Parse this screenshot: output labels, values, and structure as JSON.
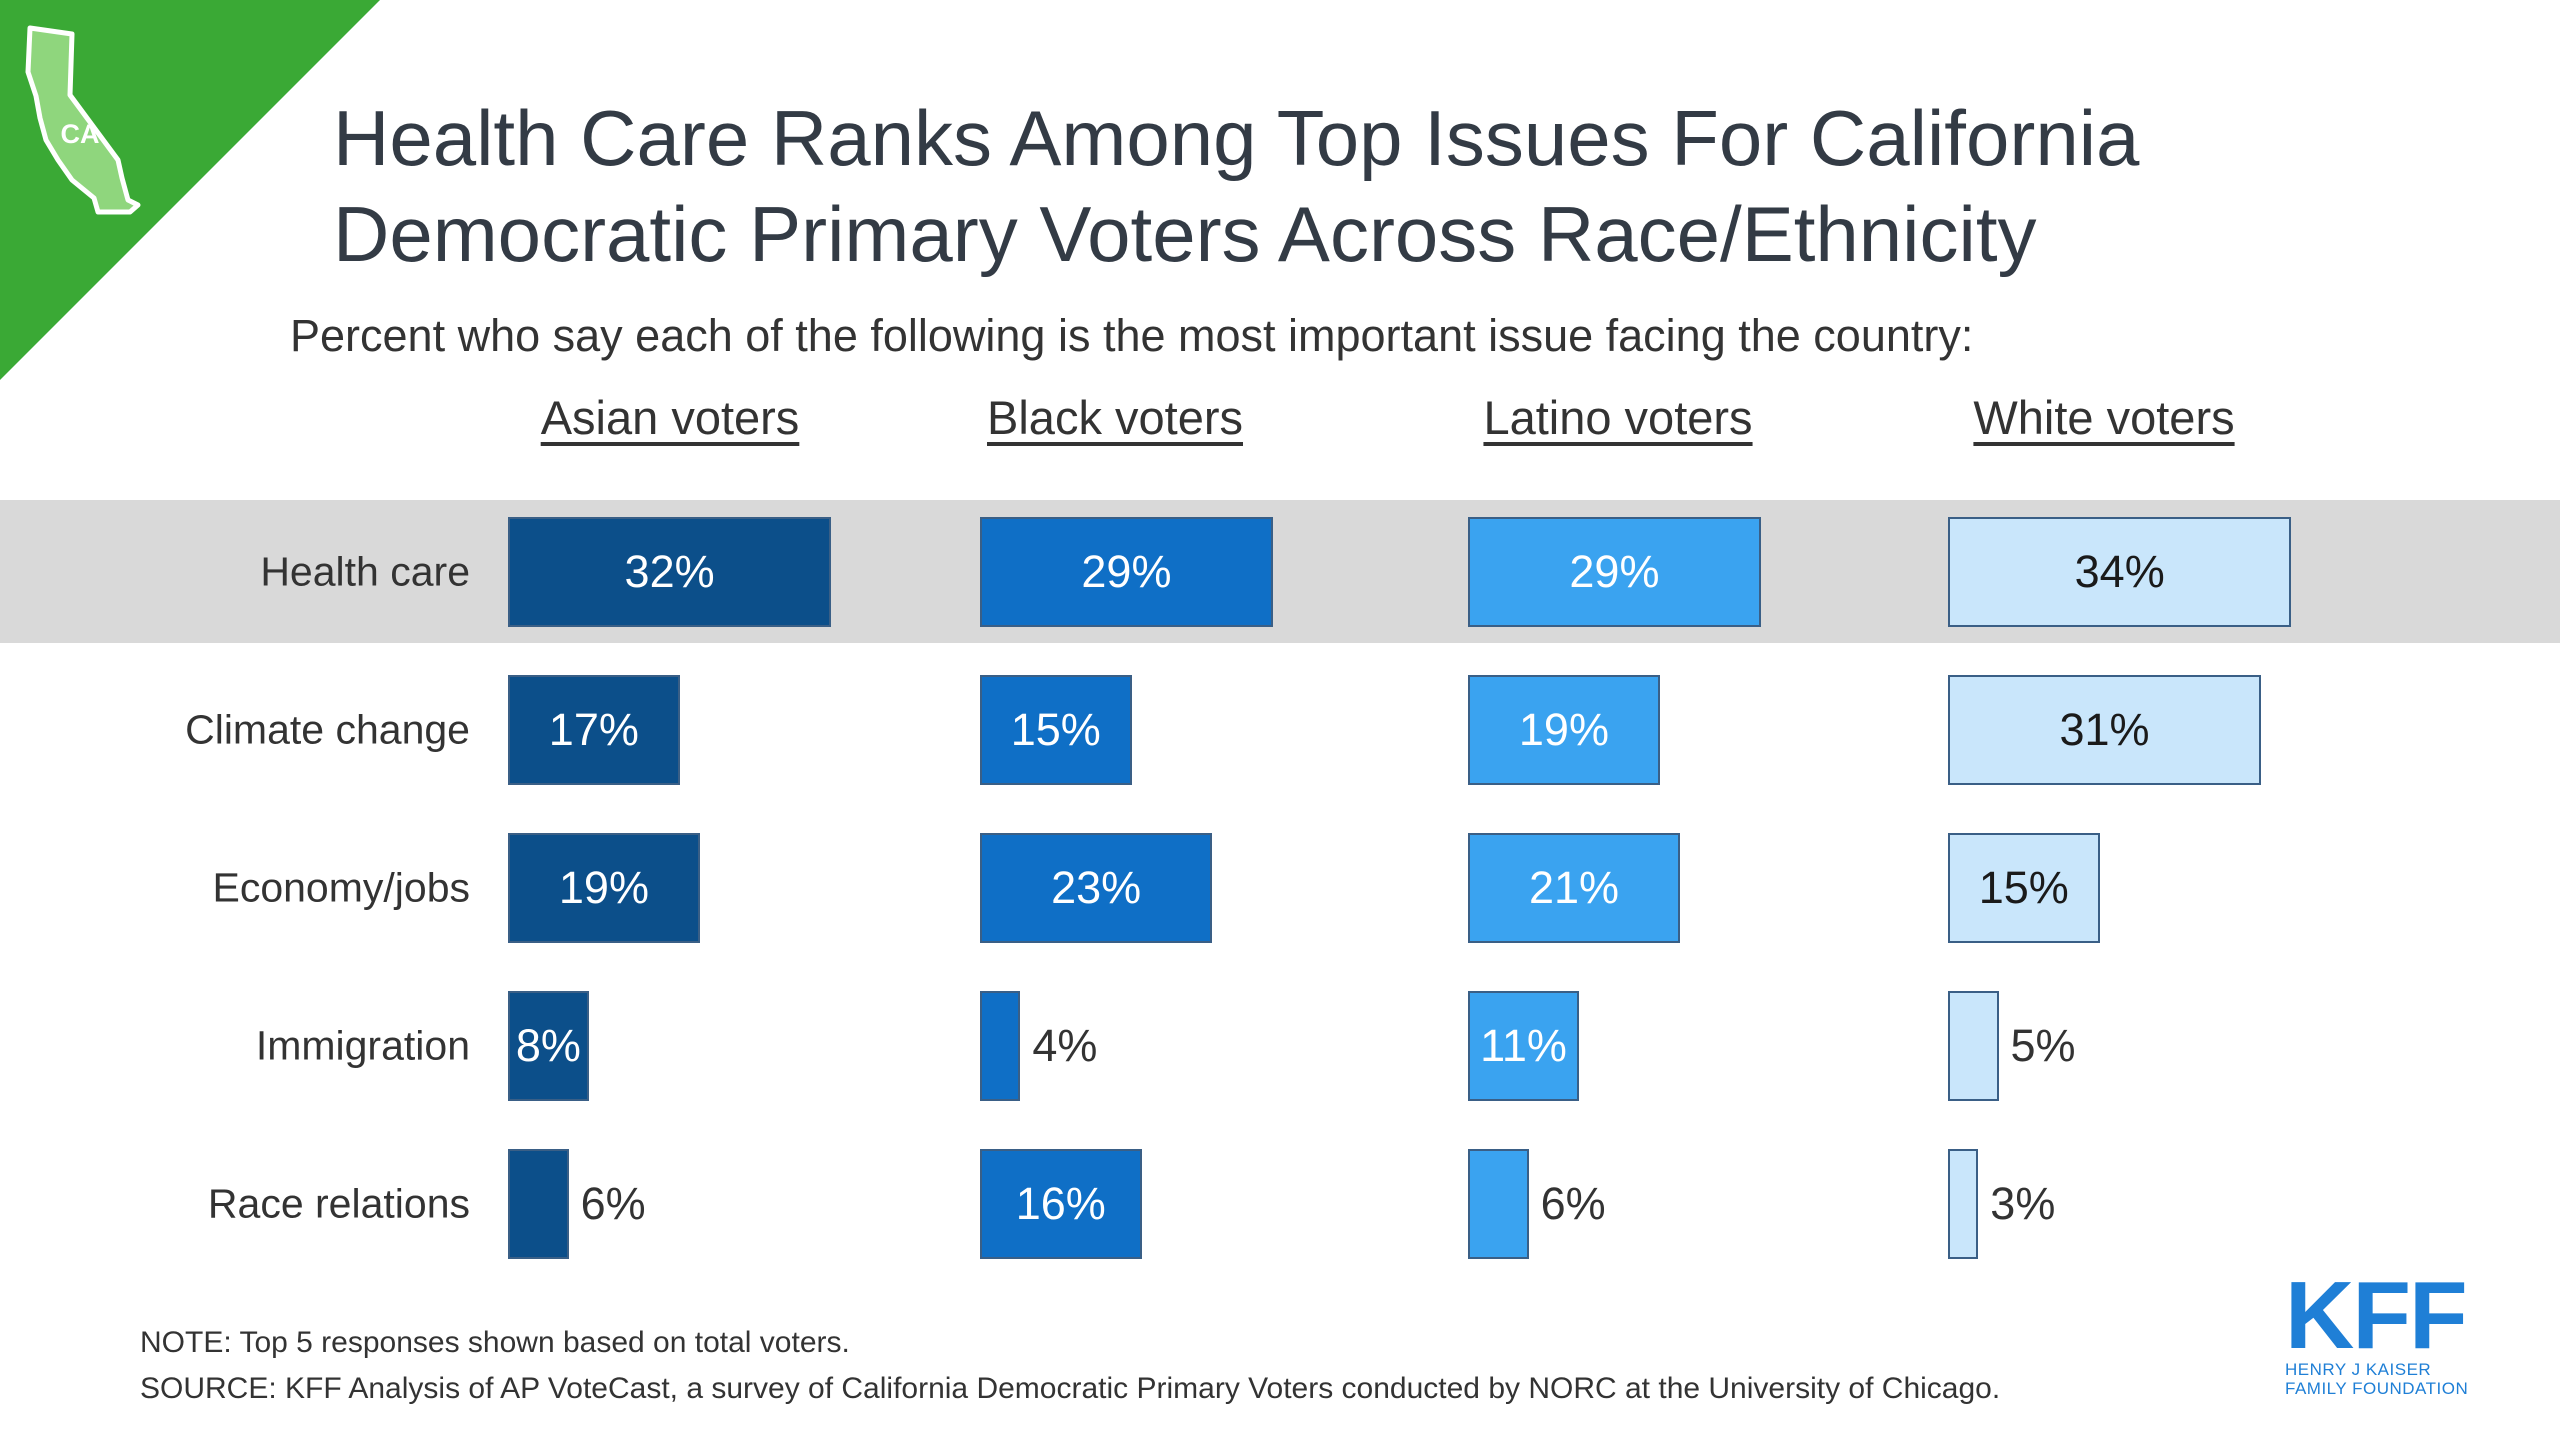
{
  "title_line1": "Health Care Ranks Among Top Issues For California",
  "title_line2": "Democratic Primary Voters Across Race/Ethnicity",
  "subtitle": "Percent who say each of the following is the most important issue facing the country:",
  "badge": "CA",
  "colors": {
    "corner": "#3aa935",
    "asian": "#0c4f8a",
    "black": "#0f6fc6",
    "latino": "#3aa3f0",
    "white": "#c9e6fb",
    "highlight": "#d9d9d9"
  },
  "chart_data": {
    "type": "bar",
    "orientation": "horizontal",
    "categories": [
      "Health care",
      "Climate change",
      "Economy/jobs",
      "Immigration",
      "Race relations"
    ],
    "highlighted_category": "Health care",
    "series": [
      {
        "name": "Asian voters",
        "values": [
          32,
          17,
          19,
          8,
          6
        ],
        "labels": [
          "32%",
          "17%",
          "19%",
          "8%",
          "6%"
        ]
      },
      {
        "name": "Black voters",
        "values": [
          29,
          15,
          23,
          4,
          16
        ],
        "labels": [
          "29%",
          "15%",
          "23%",
          "4%",
          "16%"
        ]
      },
      {
        "name": "Latino voters",
        "values": [
          29,
          19,
          21,
          11,
          6
        ],
        "labels": [
          "29%",
          "19%",
          "21%",
          "11%",
          "6%"
        ]
      },
      {
        "name": "White voters",
        "values": [
          34,
          31,
          15,
          5,
          3
        ],
        "labels": [
          "34%",
          "31%",
          "15%",
          "5%",
          "3%"
        ]
      }
    ],
    "unit": "%"
  },
  "note": "NOTE: Top 5 responses shown based on total voters.",
  "source": "SOURCE: KFF Analysis of AP VoteCast, a survey of California Democratic Primary Voters conducted by NORC at the University of Chicago.",
  "logo": {
    "mark": "KFF",
    "line1": "HENRY J KAISER",
    "line2": "FAMILY FOUNDATION"
  }
}
